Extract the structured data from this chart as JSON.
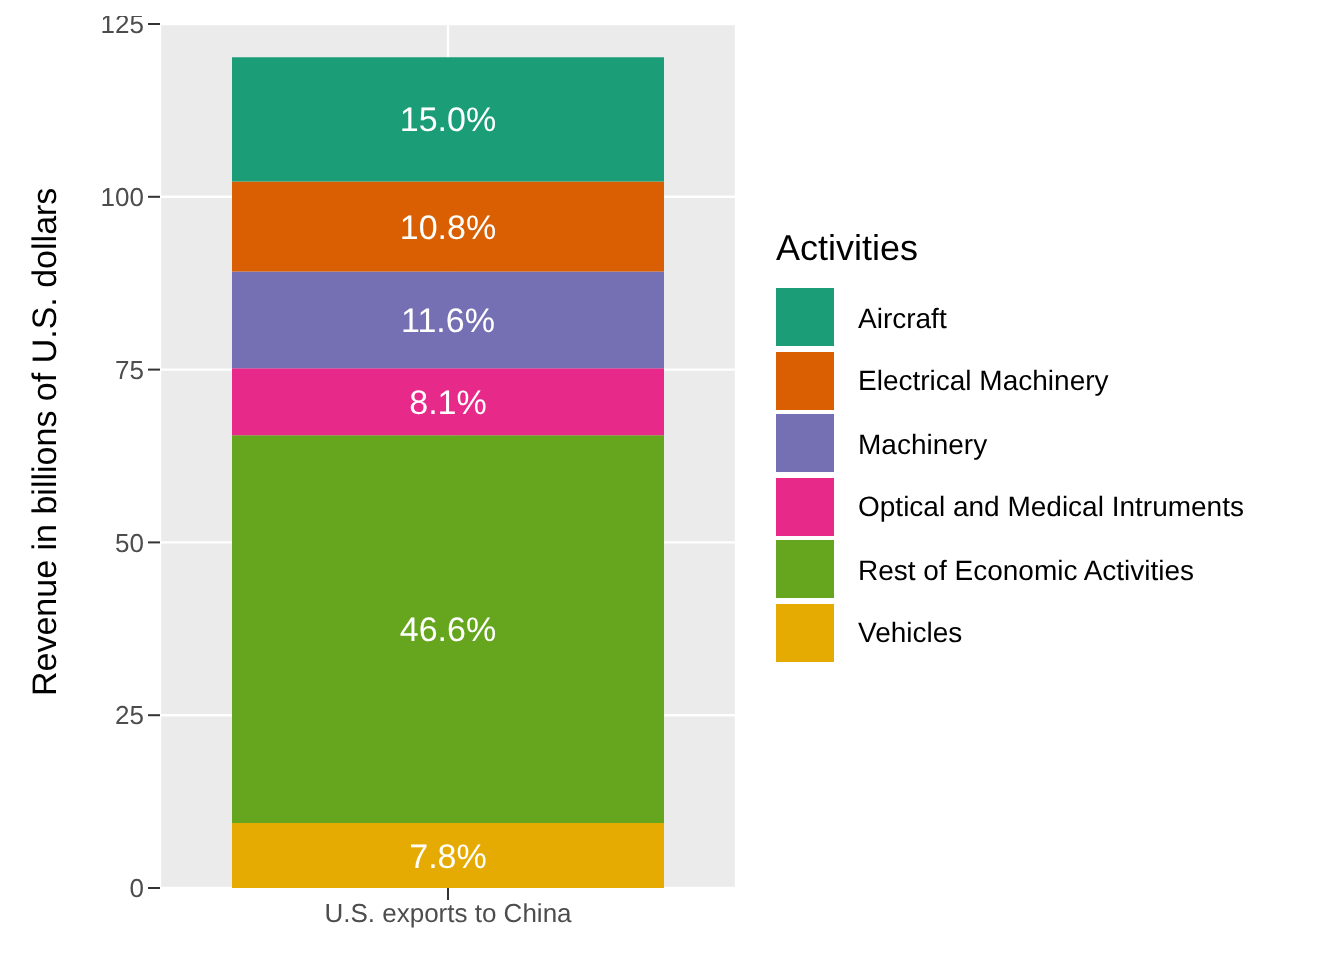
{
  "chart_data": {
    "type": "bar",
    "stacked": true,
    "categories": [
      "U.S. exports to China"
    ],
    "ylabel": "Revenue in billions of U.S. dollars",
    "legend_title": "Activities",
    "legend": "right",
    "grid": true,
    "ylim": [
      0,
      125
    ],
    "yticks": [
      0,
      25,
      50,
      75,
      100,
      125
    ],
    "series": [
      {
        "name": "Vehicles",
        "color": "#e6ab02",
        "values": [
          9.4
        ]
      },
      {
        "name": "Rest of Economic Activities",
        "color": "#66a61e",
        "values": [
          56.1
        ]
      },
      {
        "name": "Optical and Medical Intruments",
        "color": "#e7298a",
        "values": [
          9.7
        ]
      },
      {
        "name": "Machinery",
        "color": "#7570b3",
        "values": [
          14.0
        ]
      },
      {
        "name": "Electrical Machinery",
        "color": "#d95f02",
        "values": [
          13.0
        ]
      },
      {
        "name": "Aircraft",
        "color": "#1b9e77",
        "values": [
          18.0
        ]
      }
    ],
    "annotations": [
      "7.8%",
      "46.6%",
      "8.1%",
      "11.6%",
      "10.8%",
      "15.0%"
    ]
  }
}
